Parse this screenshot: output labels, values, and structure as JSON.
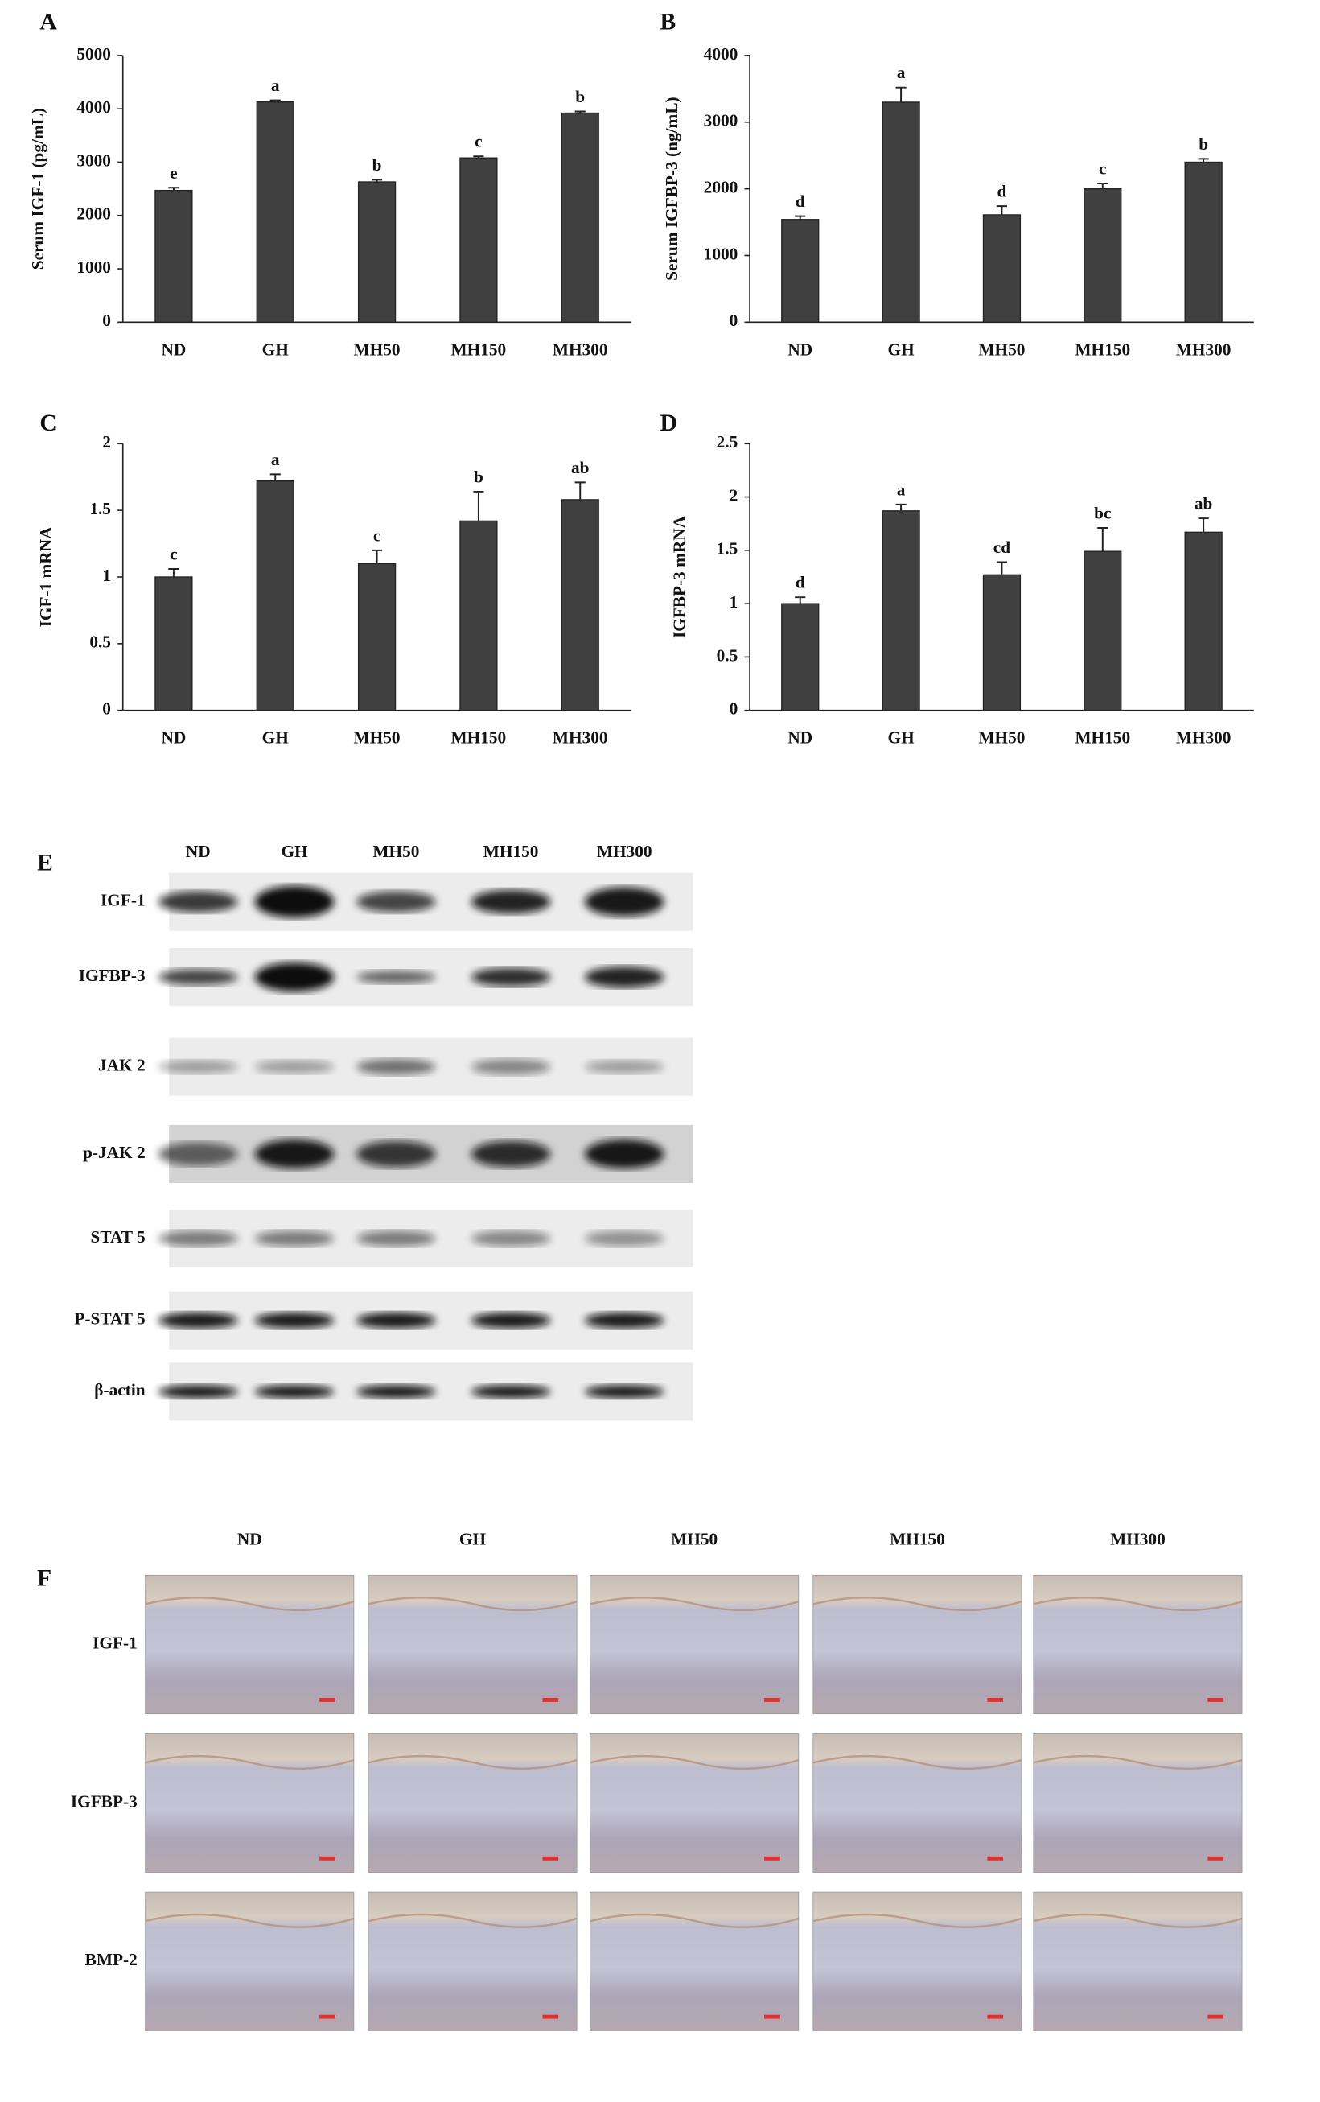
{
  "chart_data": [
    {
      "type": "bar",
      "panel": "A",
      "y_label": "Serum IGF-1 (pg/mL)",
      "categories": [
        "ND",
        "GH",
        "MH50",
        "MH150",
        "MH300"
      ],
      "values": [
        2470,
        4130,
        2630,
        3080,
        3920
      ],
      "errors": [
        50,
        30,
        40,
        30,
        30
      ],
      "annotations": [
        "e",
        "a",
        "b",
        "c",
        "b"
      ],
      "color": "#404040",
      "ylim": [
        0,
        5000
      ],
      "yticks": [
        0,
        1000,
        2000,
        3000,
        4000,
        5000
      ]
    },
    {
      "type": "bar",
      "panel": "B",
      "y_label": "Serum IGFBP-3 (ng/mL)",
      "categories": [
        "ND",
        "GH",
        "MH50",
        "MH150",
        "MH300"
      ],
      "values": [
        1540,
        3300,
        1610,
        2000,
        2400
      ],
      "errors": [
        50,
        220,
        130,
        80,
        50
      ],
      "annotations": [
        "d",
        "a",
        "d",
        "c",
        "b"
      ],
      "color": "#404040",
      "ylim": [
        0,
        4000
      ],
      "yticks": [
        0,
        1000,
        2000,
        3000,
        4000
      ]
    },
    {
      "type": "bar",
      "panel": "C",
      "y_label": "IGF-1 mRNA",
      "categories": [
        "ND",
        "GH",
        "MH50",
        "MH150",
        "MH300"
      ],
      "values": [
        1.0,
        1.72,
        1.1,
        1.42,
        1.58
      ],
      "errors": [
        0.06,
        0.05,
        0.1,
        0.22,
        0.13
      ],
      "annotations": [
        "c",
        "a",
        "c",
        "b",
        "ab"
      ],
      "color": "#404040",
      "ylim": [
        0,
        2
      ],
      "yticks": [
        0,
        0.5,
        1,
        1.5,
        2
      ]
    },
    {
      "type": "bar",
      "panel": "D",
      "y_label": "IGFBP-3 mRNA",
      "categories": [
        "ND",
        "GH",
        "MH50",
        "MH150",
        "MH300"
      ],
      "values": [
        1.0,
        1.87,
        1.27,
        1.49,
        1.67
      ],
      "errors": [
        0.06,
        0.06,
        0.12,
        0.22,
        0.13
      ],
      "annotations": [
        "d",
        "a",
        "cd",
        "bc",
        "ab"
      ],
      "color": "#404040",
      "ylim": [
        0,
        2.5
      ],
      "yticks": [
        0,
        0.5,
        1,
        1.5,
        2,
        2.5
      ]
    }
  ],
  "blot": {
    "panel": "E",
    "columns": [
      "ND",
      "GH",
      "MH50",
      "MH150",
      "MH300"
    ],
    "rows": [
      "IGF-1",
      "IGFBP-3",
      "JAK 2",
      "p-JAK 2",
      "STAT 5",
      "P-STAT 5",
      "β-actin"
    ]
  },
  "histology": {
    "panel": "F",
    "columns": [
      "ND",
      "GH",
      "MH50",
      "MH150",
      "MH300"
    ],
    "rows": [
      "IGF-1",
      "IGFBP-3",
      "BMP-2"
    ]
  }
}
